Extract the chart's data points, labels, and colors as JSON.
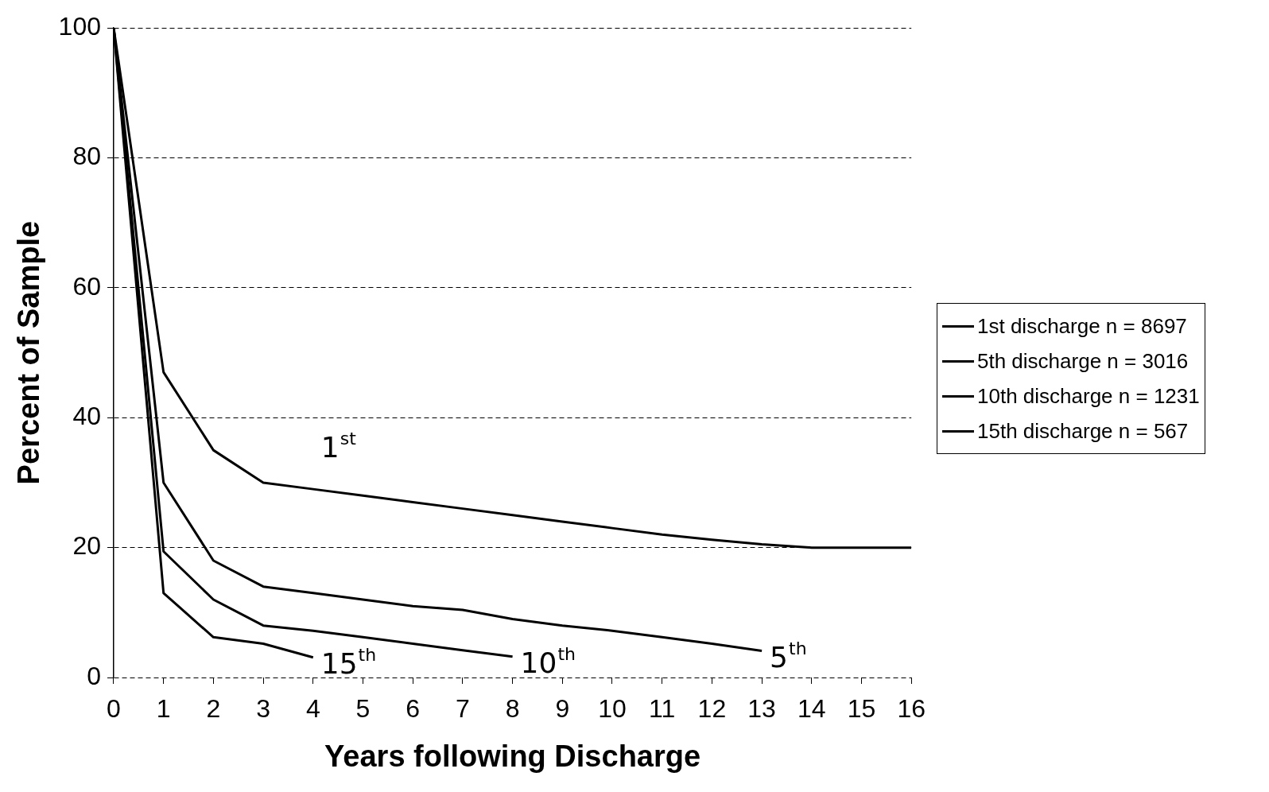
{
  "chart_data": {
    "type": "line",
    "xlabel": "Years following Discharge",
    "ylabel": "Percent of Sample",
    "xlim": [
      0,
      16
    ],
    "xticks": [
      0,
      1,
      2,
      3,
      4,
      5,
      6,
      7,
      8,
      9,
      10,
      11,
      12,
      13,
      14,
      15,
      16
    ],
    "ylim": [
      0,
      100
    ],
    "yticks": [
      0,
      20,
      40,
      60,
      80,
      100
    ],
    "grid": "y",
    "legend": "right",
    "marker": "none",
    "line_style": "solid",
    "series": [
      {
        "name": "1st discharge n = 8697",
        "color": "#000000",
        "x": [
          0,
          1,
          2,
          3,
          4,
          5,
          6,
          7,
          8,
          9,
          10,
          11,
          12,
          13,
          14,
          15,
          16
        ],
        "values": [
          100,
          47,
          35,
          30,
          29,
          28,
          27,
          26,
          25,
          24,
          23,
          22,
          21.2,
          20.5,
          20,
          20,
          20
        ]
      },
      {
        "name": "5th discharge n = 3016",
        "color": "#000000",
        "x": [
          0,
          1,
          2,
          3,
          4,
          5,
          6,
          7,
          8,
          9,
          10,
          11,
          12,
          13
        ],
        "values": [
          100,
          30,
          18,
          14,
          13,
          12,
          11,
          10.4,
          9,
          8,
          7.2,
          6.2,
          5.2,
          4.1
        ]
      },
      {
        "name": "10th discharge n = 1231",
        "color": "#000000",
        "x": [
          0,
          1,
          2,
          3,
          4,
          5,
          6,
          7,
          8
        ],
        "values": [
          100,
          19.4,
          12,
          8,
          7.2,
          6.2,
          5.2,
          4.2,
          3.2
        ]
      },
      {
        "name": "15th discharge n = 567",
        "color": "#000000",
        "x": [
          0,
          1,
          2,
          3,
          4
        ],
        "values": [
          100,
          13,
          6.2,
          5.2,
          3.1
        ]
      }
    ],
    "annotations": [
      "1$^{st}$",
      "5$^{th}$",
      "10$^{th}$",
      "15$^{th}$"
    ]
  }
}
